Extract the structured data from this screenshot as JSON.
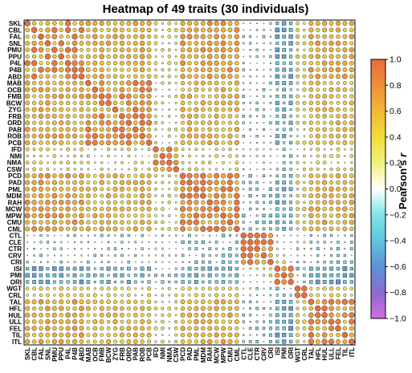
{
  "chart_data": {
    "type": "heatmap",
    "title": "Heatmap of 49 traits (30 individuals)",
    "colorbar_label_prefix": "Pearson's ",
    "colorbar_label_var": "r",
    "colorbar_range": [
      -1.0,
      1.0
    ],
    "colorbar_ticks": [
      "1.0",
      "0.8",
      "0.6",
      "0.4",
      "0.2",
      "0.0",
      "−0.2",
      "−0.4",
      "−0.6",
      "−0.8",
      "−1.0"
    ],
    "colorscale": [
      "#D36DDF",
      "#8A6AD2",
      "#5F92D7",
      "#5FC4DE",
      "#7FE3E8",
      "#FFFFFF",
      "#EFF07A",
      "#F0DD3A",
      "#F2B834",
      "#EF8C3A",
      "#E96D3B"
    ],
    "legend_position": "right",
    "grid": false,
    "traits": [
      "SKL",
      "CBL",
      "FAL",
      "SNL",
      "PMU",
      "PPU",
      "P4L",
      "P4B",
      "ABD",
      "MAB",
      "OCB",
      "FMB",
      "BCW",
      "ZYG",
      "FRB",
      "ORD",
      "PAB",
      "ROB",
      "PCB",
      "IFD",
      "NMI",
      "NMA",
      "CSW",
      "PCD",
      "PAD",
      "PML",
      "MDM",
      "RAH",
      "MCW",
      "MPW",
      "CMU",
      "CML",
      "CTL",
      "CLE",
      "CTR",
      "CRV",
      "CRI",
      "ISI",
      "PMI",
      "ORI",
      "WGT",
      "CRL",
      "TAL",
      "HFL",
      "HUL",
      "ULL",
      "FEL",
      "TIL",
      "ITL"
    ],
    "group_values": [
      [
        1.0,
        0.55,
        0.25,
        0.65,
        0.3,
        0.55,
        -0.05,
        0.6,
        -0.1,
        -0.4,
        0.6
      ],
      [
        0.55,
        1.0,
        0.15,
        0.5,
        0.25,
        0.45,
        -0.05,
        0.45,
        -0.05,
        -0.3,
        0.45
      ],
      [
        0.25,
        0.15,
        1.0,
        0.2,
        0.1,
        0.15,
        0.0,
        0.2,
        0.05,
        -0.1,
        0.2
      ],
      [
        0.65,
        0.5,
        0.2,
        1.0,
        0.3,
        0.55,
        -0.15,
        0.5,
        -0.1,
        -0.35,
        0.55
      ],
      [
        0.3,
        0.25,
        0.1,
        0.3,
        1.0,
        0.3,
        0.0,
        0.25,
        -0.05,
        -0.15,
        0.3
      ],
      [
        0.55,
        0.45,
        0.15,
        0.55,
        0.3,
        1.0,
        -0.05,
        0.6,
        -0.1,
        -0.35,
        0.65
      ],
      [
        -0.05,
        -0.05,
        0.0,
        -0.15,
        0.0,
        -0.05,
        1.0,
        -0.05,
        0.1,
        0.15,
        -0.1
      ],
      [
        0.6,
        0.45,
        0.2,
        0.5,
        0.25,
        0.6,
        -0.05,
        1.0,
        -0.05,
        -0.35,
        0.6
      ],
      [
        -0.1,
        -0.05,
        0.05,
        -0.1,
        -0.05,
        -0.1,
        0.1,
        -0.05,
        1.0,
        0.1,
        -0.1
      ],
      [
        -0.4,
        -0.3,
        -0.1,
        -0.35,
        -0.15,
        -0.35,
        0.15,
        -0.35,
        0.1,
        1.0,
        -0.45
      ],
      [
        0.6,
        0.45,
        0.2,
        0.55,
        0.3,
        0.65,
        -0.1,
        0.6,
        -0.1,
        -0.45,
        1.0
      ]
    ]
  }
}
